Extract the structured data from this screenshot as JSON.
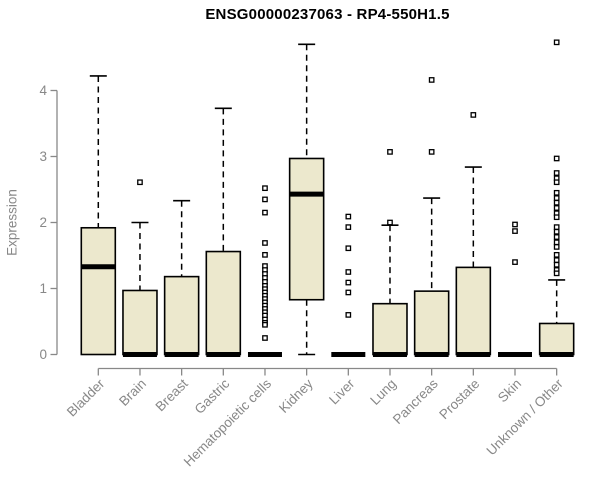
{
  "chart_data": {
    "type": "box",
    "title": "ENSG00000237063 - RP4-550H1.5",
    "xlabel": "",
    "ylabel": "Expression",
    "ylim": [
      0,
      4.8
    ],
    "yticks": [
      0,
      1,
      2,
      3,
      4
    ],
    "grid": false,
    "legend": "none",
    "colors": {
      "box_fill": "#ece8cd",
      "box_stroke": "#000000",
      "axis": "#888888",
      "title": "#000000",
      "background": "#ffffff"
    },
    "categories": [
      "Bladder",
      "Brain",
      "Breast",
      "Gastric",
      "Hematopoietic cells",
      "Kidney",
      "Liver",
      "Lung",
      "Pancreas",
      "Prostate",
      "Skin",
      "Unknown / Other"
    ],
    "series": [
      {
        "name": "Bladder",
        "q1": 0,
        "median": 1.33,
        "q3": 1.92,
        "whisker_low": 0,
        "whisker_high": 4.22,
        "outliers": []
      },
      {
        "name": "Brain",
        "q1": 0,
        "median": 0,
        "q3": 0.97,
        "whisker_low": 0,
        "whisker_high": 2.0,
        "outliers": [
          2.61
        ]
      },
      {
        "name": "Breast",
        "q1": 0,
        "median": 0,
        "q3": 1.18,
        "whisker_low": 0,
        "whisker_high": 2.33,
        "outliers": []
      },
      {
        "name": "Gastric",
        "q1": 0,
        "median": 0,
        "q3": 1.56,
        "whisker_low": 0,
        "whisker_high": 3.73,
        "outliers": []
      },
      {
        "name": "Hematopoietic cells",
        "q1": 0,
        "median": 0,
        "q3": 0,
        "whisker_low": 0,
        "whisker_high": 0,
        "outliers": [
          2.52,
          2.35,
          2.15,
          1.69,
          1.51,
          1.34,
          1.28,
          1.22,
          1.16,
          1.1,
          1.04,
          0.99,
          0.94,
          0.89,
          0.84,
          0.79,
          0.74,
          0.69,
          0.64,
          0.59,
          0.53,
          0.48,
          0.45,
          0.25
        ]
      },
      {
        "name": "Kidney",
        "q1": 0.83,
        "median": 2.43,
        "q3": 2.97,
        "whisker_low": 0,
        "whisker_high": 4.7,
        "outliers": []
      },
      {
        "name": "Liver",
        "q1": 0,
        "median": 0,
        "q3": 0,
        "whisker_low": 0,
        "whisker_high": 0,
        "outliers": [
          2.09,
          1.93,
          1.61,
          1.25,
          1.09,
          0.94,
          0.6
        ]
      },
      {
        "name": "Lung",
        "q1": 0,
        "median": 0,
        "q3": 0.77,
        "whisker_low": 0,
        "whisker_high": 1.96,
        "outliers": [
          3.07,
          2.0
        ]
      },
      {
        "name": "Pancreas",
        "q1": 0,
        "median": 0,
        "q3": 0.96,
        "whisker_low": 0,
        "whisker_high": 2.37,
        "outliers": [
          4.16,
          3.07
        ]
      },
      {
        "name": "Prostate",
        "q1": 0,
        "median": 0,
        "q3": 1.32,
        "whisker_low": 0,
        "whisker_high": 2.84,
        "outliers": [
          3.63
        ]
      },
      {
        "name": "Skin",
        "q1": 0,
        "median": 0,
        "q3": 0,
        "whisker_low": 0,
        "whisker_high": 0,
        "outliers": [
          1.97,
          1.87,
          1.4
        ]
      },
      {
        "name": "Unknown / Other",
        "q1": 0,
        "median": 0,
        "q3": 0.47,
        "whisker_low": 0,
        "whisker_high": 1.13,
        "outliers": [
          4.73,
          2.97,
          2.75,
          2.67,
          2.61,
          2.45,
          2.37,
          2.3,
          2.22,
          2.14,
          2.08,
          1.93,
          1.86,
          1.78,
          1.7,
          1.63,
          1.51,
          1.43,
          1.36,
          1.28,
          1.23
        ]
      }
    ]
  }
}
